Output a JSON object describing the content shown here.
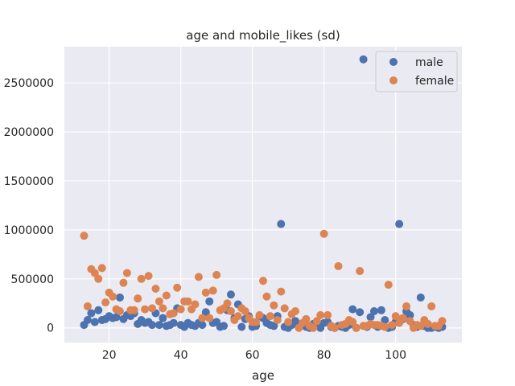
{
  "chart_data": {
    "type": "scatter",
    "title": "age and mobile_likes (sd)",
    "xlabel": "age",
    "ylabel": "",
    "xlim": [
      7.5,
      118.5
    ],
    "ylim": [
      -150000,
      2870000
    ],
    "xticks": [
      20,
      40,
      60,
      80,
      100
    ],
    "yticks": [
      0,
      500000,
      1000000,
      1500000,
      2000000,
      2500000
    ],
    "grid": true,
    "legend": "top-right",
    "series": [
      {
        "name": "male",
        "color": "#4c72b0",
        "points": [
          [
            13,
            30000
          ],
          [
            14,
            80000
          ],
          [
            15,
            150000
          ],
          [
            16,
            60000
          ],
          [
            17,
            180000
          ],
          [
            18,
            80000
          ],
          [
            19,
            90000
          ],
          [
            20,
            120000
          ],
          [
            21,
            100000
          ],
          [
            22,
            110000
          ],
          [
            23,
            310000
          ],
          [
            24,
            90000
          ],
          [
            25,
            130000
          ],
          [
            26,
            120000
          ],
          [
            27,
            150000
          ],
          [
            28,
            40000
          ],
          [
            29,
            80000
          ],
          [
            30,
            50000
          ],
          [
            31,
            60000
          ],
          [
            32,
            30000
          ],
          [
            33,
            150000
          ],
          [
            34,
            30000
          ],
          [
            35,
            100000
          ],
          [
            36,
            20000
          ],
          [
            37,
            30000
          ],
          [
            38,
            50000
          ],
          [
            39,
            200000
          ],
          [
            40,
            30000
          ],
          [
            41,
            10000
          ],
          [
            42,
            50000
          ],
          [
            43,
            30000
          ],
          [
            44,
            20000
          ],
          [
            45,
            50000
          ],
          [
            46,
            30000
          ],
          [
            47,
            160000
          ],
          [
            48,
            270000
          ],
          [
            49,
            50000
          ],
          [
            50,
            60000
          ],
          [
            51,
            10000
          ],
          [
            52,
            20000
          ],
          [
            53,
            180000
          ],
          [
            54,
            340000
          ],
          [
            55,
            100000
          ],
          [
            56,
            240000
          ],
          [
            57,
            10000
          ],
          [
            58,
            90000
          ],
          [
            59,
            120000
          ],
          [
            60,
            10000
          ],
          [
            61,
            20000
          ],
          [
            62,
            120000
          ],
          [
            63,
            100000
          ],
          [
            64,
            50000
          ],
          [
            65,
            30000
          ],
          [
            66,
            20000
          ],
          [
            67,
            120000
          ],
          [
            68,
            1060000
          ],
          [
            69,
            10000
          ],
          [
            70,
            0
          ],
          [
            71,
            30000
          ],
          [
            72,
            70000
          ],
          [
            73,
            20000
          ],
          [
            74,
            40000
          ],
          [
            75,
            10000
          ],
          [
            76,
            0
          ],
          [
            77,
            40000
          ],
          [
            78,
            20000
          ],
          [
            79,
            0
          ],
          [
            80,
            50000
          ],
          [
            81,
            60000
          ],
          [
            82,
            10000
          ],
          [
            83,
            0
          ],
          [
            84,
            20000
          ],
          [
            85,
            10000
          ],
          [
            86,
            0
          ],
          [
            87,
            30000
          ],
          [
            88,
            190000
          ],
          [
            89,
            0
          ],
          [
            90,
            160000
          ],
          [
            91,
            2740000
          ],
          [
            92,
            10000
          ],
          [
            93,
            110000
          ],
          [
            94,
            170000
          ],
          [
            95,
            10000
          ],
          [
            96,
            180000
          ],
          [
            97,
            80000
          ],
          [
            98,
            0
          ],
          [
            99,
            10000
          ],
          [
            100,
            60000
          ],
          [
            101,
            1060000
          ],
          [
            102,
            90000
          ],
          [
            103,
            170000
          ],
          [
            104,
            130000
          ],
          [
            105,
            30000
          ],
          [
            106,
            10000
          ],
          [
            107,
            310000
          ],
          [
            108,
            20000
          ],
          [
            109,
            0
          ],
          [
            110,
            0
          ],
          [
            111,
            10000
          ],
          [
            112,
            0
          ],
          [
            113,
            10000
          ]
        ]
      },
      {
        "name": "female",
        "color": "#dd8452",
        "points": [
          [
            13,
            940000
          ],
          [
            14,
            220000
          ],
          [
            15,
            600000
          ],
          [
            16,
            560000
          ],
          [
            17,
            500000
          ],
          [
            18,
            610000
          ],
          [
            19,
            260000
          ],
          [
            20,
            360000
          ],
          [
            21,
            320000
          ],
          [
            22,
            190000
          ],
          [
            23,
            170000
          ],
          [
            24,
            460000
          ],
          [
            25,
            560000
          ],
          [
            26,
            180000
          ],
          [
            27,
            180000
          ],
          [
            28,
            300000
          ],
          [
            29,
            500000
          ],
          [
            30,
            190000
          ],
          [
            31,
            530000
          ],
          [
            32,
            200000
          ],
          [
            33,
            400000
          ],
          [
            34,
            270000
          ],
          [
            35,
            200000
          ],
          [
            36,
            330000
          ],
          [
            37,
            140000
          ],
          [
            38,
            150000
          ],
          [
            39,
            410000
          ],
          [
            40,
            190000
          ],
          [
            41,
            270000
          ],
          [
            42,
            270000
          ],
          [
            43,
            190000
          ],
          [
            44,
            240000
          ],
          [
            45,
            520000
          ],
          [
            46,
            100000
          ],
          [
            47,
            360000
          ],
          [
            48,
            100000
          ],
          [
            49,
            380000
          ],
          [
            50,
            540000
          ],
          [
            51,
            180000
          ],
          [
            52,
            200000
          ],
          [
            53,
            250000
          ],
          [
            54,
            170000
          ],
          [
            55,
            80000
          ],
          [
            56,
            120000
          ],
          [
            57,
            200000
          ],
          [
            58,
            170000
          ],
          [
            59,
            100000
          ],
          [
            60,
            60000
          ],
          [
            61,
            60000
          ],
          [
            62,
            130000
          ],
          [
            63,
            480000
          ],
          [
            64,
            320000
          ],
          [
            65,
            120000
          ],
          [
            66,
            230000
          ],
          [
            67,
            80000
          ],
          [
            68,
            370000
          ],
          [
            69,
            200000
          ],
          [
            70,
            60000
          ],
          [
            71,
            140000
          ],
          [
            72,
            170000
          ],
          [
            73,
            0
          ],
          [
            74,
            50000
          ],
          [
            75,
            90000
          ],
          [
            76,
            20000
          ],
          [
            77,
            0
          ],
          [
            78,
            70000
          ],
          [
            79,
            130000
          ],
          [
            80,
            960000
          ],
          [
            81,
            130000
          ],
          [
            82,
            20000
          ],
          [
            83,
            0
          ],
          [
            84,
            630000
          ],
          [
            85,
            30000
          ],
          [
            86,
            40000
          ],
          [
            87,
            80000
          ],
          [
            88,
            60000
          ],
          [
            89,
            0
          ],
          [
            90,
            580000
          ],
          [
            91,
            20000
          ],
          [
            92,
            20000
          ],
          [
            93,
            40000
          ],
          [
            94,
            30000
          ],
          [
            95,
            30000
          ],
          [
            96,
            20000
          ],
          [
            97,
            10000
          ],
          [
            98,
            440000
          ],
          [
            99,
            30000
          ],
          [
            100,
            120000
          ],
          [
            101,
            50000
          ],
          [
            102,
            100000
          ],
          [
            103,
            220000
          ],
          [
            104,
            70000
          ],
          [
            105,
            0
          ],
          [
            106,
            30000
          ],
          [
            107,
            20000
          ],
          [
            108,
            80000
          ],
          [
            109,
            40000
          ],
          [
            110,
            220000
          ],
          [
            111,
            20000
          ],
          [
            112,
            20000
          ],
          [
            113,
            70000
          ]
        ]
      }
    ]
  }
}
